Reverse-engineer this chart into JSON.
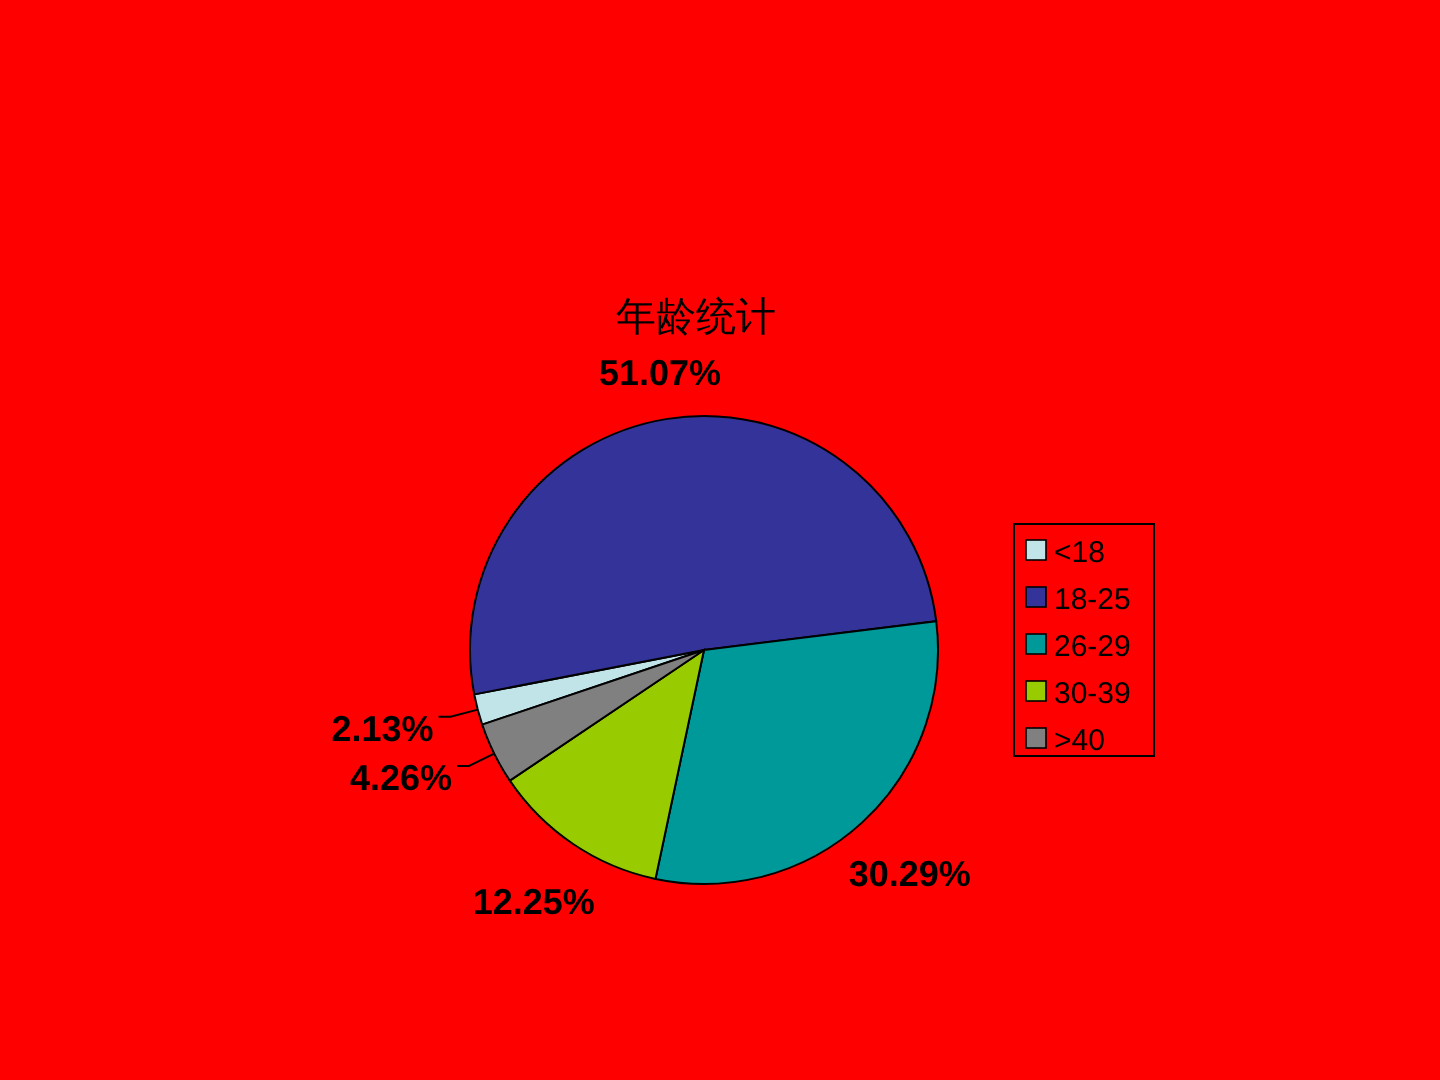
{
  "chart_data": {
    "type": "pie",
    "title": "年龄统计",
    "categories": [
      "<18",
      "18-25",
      "26-29",
      "30-39",
      ">40"
    ],
    "values": [
      2.13,
      51.07,
      30.29,
      12.25,
      4.26
    ],
    "colors": [
      "#c0e4e8",
      "#333399",
      "#009999",
      "#99cc00",
      "#808080"
    ],
    "value_labels": [
      "2.13%",
      "51.07%",
      "30.29%",
      "12.25%",
      "4.26%"
    ],
    "legend": "right"
  }
}
